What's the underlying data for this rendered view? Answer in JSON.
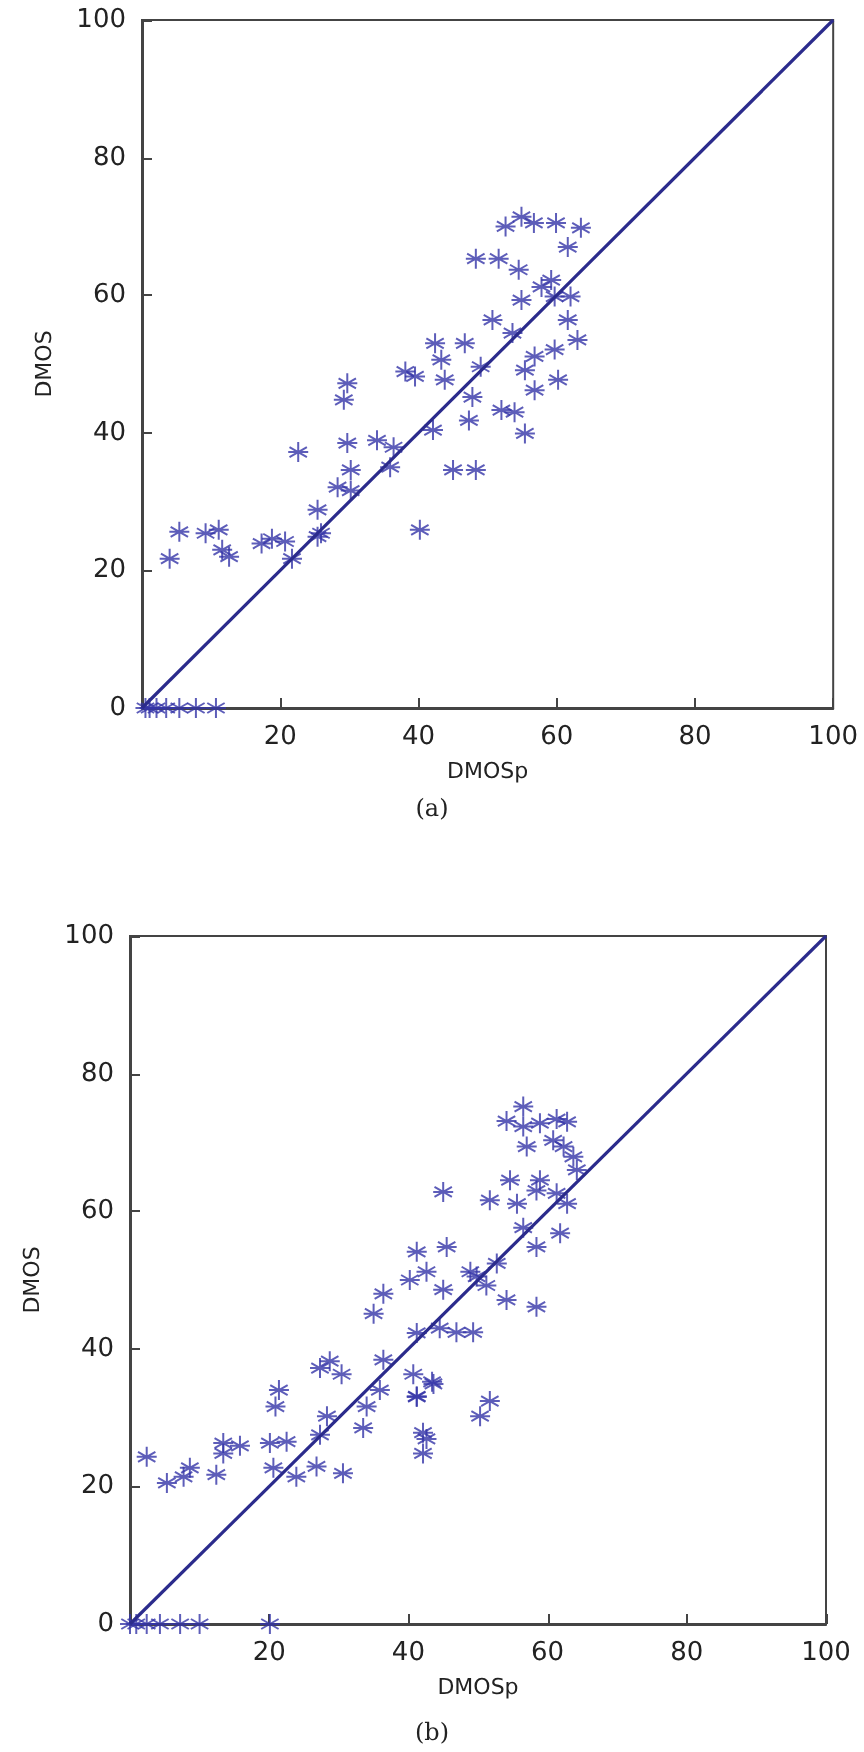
{
  "chart_data": [
    {
      "type": "scatter",
      "xlabel": "DMOSp",
      "ylabel": "DMOS",
      "annotations": [
        "(a)"
      ],
      "xlim": [
        0,
        100
      ],
      "ylim": [
        0,
        100
      ],
      "xticks": [
        {
          "value": 0,
          "label": null
        },
        20,
        40,
        60,
        80,
        100
      ],
      "yticks": [
        0,
        20,
        40,
        60,
        80,
        100
      ],
      "marker": "cross",
      "series": [
        {
          "color": "#3535a8",
          "x": [
            54.9,
            56.7,
            52.6,
            59.9,
            63.5,
            61.6,
            48.3,
            51.6,
            54.5,
            57.8,
            59.2,
            59.7,
            62,
            54.9,
            50.7,
            61.6,
            53.6,
            63,
            59.7,
            56.8,
            42.4,
            46.7,
            43.3,
            49,
            38.1,
            39.5,
            43.8,
            55.4,
            60.2,
            56.8,
            47.8,
            42.1,
            47.3,
            52,
            53.9,
            55.4,
            29.7,
            29.2,
            29.7,
            22.6,
            34,
            36.4,
            35.9,
            30.2,
            28.3,
            30.2,
            25.4,
            25.9,
            40.2,
            45,
            48.3,
            5.4,
            9.2,
            11.1,
            11.6,
            12.6,
            4,
            17.3,
            18.8,
            20.7,
            25.4,
            21.7,
            0.5,
            1.1,
            2.1,
            3.5,
            5.4,
            7.8,
            10.7
          ],
          "values": [
            71.4,
            70.5,
            70,
            70.5,
            69.8,
            67,
            65.3,
            65.3,
            63.7,
            61.2,
            62.2,
            59.8,
            59.8,
            59.3,
            56.4,
            56.4,
            54.5,
            53.5,
            52.1,
            51.1,
            53,
            53,
            50.6,
            49.6,
            48.9,
            48.2,
            47.7,
            49.1,
            47.7,
            46.2,
            45.2,
            40.4,
            41.8,
            43.3,
            43,
            39.9,
            47.2,
            44.8,
            38.5,
            37.2,
            38.9,
            37.9,
            35,
            34.6,
            32.1,
            31.6,
            28.8,
            25.4,
            25.9,
            34.6,
            34.6,
            25.6,
            25.4,
            25.9,
            23,
            22,
            21.7,
            23.9,
            24.6,
            24.2,
            24.9,
            21.7,
            0,
            0,
            0,
            0,
            0,
            0,
            0
          ]
        },
        {
          "type": "line",
          "color": "#2b2b8c",
          "x": [
            0,
            100
          ],
          "values": [
            0,
            100
          ],
          "marker": "none",
          "line_style": "solid"
        }
      ]
    },
    {
      "type": "scatter",
      "xlabel": "DMOSp",
      "ylabel": "DMOS",
      "annotations": [
        "(b)"
      ],
      "xlim": [
        0,
        100
      ],
      "ylim": [
        0,
        100
      ],
      "xticks": [
        {
          "value": 0,
          "label": null
        },
        20,
        40,
        60,
        80,
        100
      ],
      "yticks": [
        0,
        20,
        40,
        60,
        80,
        100
      ],
      "marker": "cross",
      "series": [
        {
          "color": "#3535a8",
          "x": [
            56.5,
            54.1,
            56.5,
            58.9,
            61.3,
            62.8,
            57,
            60.8,
            62.3,
            63.7,
            64.2,
            54.6,
            58.9,
            58.4,
            61.3,
            45,
            51.7,
            55.6,
            62.8,
            56.5,
            61.8,
            58.4,
            41.2,
            45.5,
            42.6,
            40.2,
            48.9,
            52.7,
            45,
            49.8,
            51.2,
            54.1,
            58.4,
            36.4,
            35,
            41.2,
            44.5,
            46.9,
            49.3,
            36.4,
            27.3,
            28.7,
            30.4,
            40.7,
            43.4,
            35.9,
            41.2,
            21.4,
            20.9,
            34,
            28.3,
            51.7,
            50.3,
            33.5,
            42.1,
            2.4,
            5.3,
            7.7,
            8.6,
            12.4,
            13.4,
            13.4,
            15.8,
            20.1,
            22.5,
            20.6,
            23.9,
            26.8,
            30.6,
            27.3,
            42.1,
            42.6,
            41.2,
            43.6,
            0,
            0.9,
            2.4,
            4.3,
            7.2,
            10,
            20.1
          ],
          "values": [
            75.2,
            73.1,
            72.3,
            72.8,
            73.4,
            73,
            69.4,
            70.3,
            69.4,
            67.9,
            66,
            64.5,
            64.5,
            63,
            62.6,
            62.8,
            61.6,
            61.1,
            61.1,
            57.6,
            56.8,
            54.8,
            54.1,
            54.8,
            51.2,
            50,
            51.2,
            52.4,
            48.6,
            50.5,
            49.2,
            47.1,
            46.1,
            48,
            45.1,
            42.3,
            43,
            42.4,
            42.4,
            38.4,
            37.2,
            38.2,
            36.3,
            36.3,
            35.2,
            34,
            33.1,
            34,
            31.6,
            31.6,
            30.2,
            32.4,
            30.2,
            28.5,
            27.8,
            24.3,
            20.5,
            21.4,
            22.7,
            21.7,
            26.3,
            24.8,
            25.9,
            26.3,
            26.5,
            22.7,
            21.4,
            22.9,
            21.9,
            27.5,
            24.8,
            26.9,
            33,
            34.9,
            0,
            0,
            0,
            0,
            0,
            0,
            0
          ]
        },
        {
          "type": "line",
          "color": "#2b2b8c",
          "x": [
            0,
            100
          ],
          "values": [
            0,
            100
          ],
          "marker": "none",
          "line_style": "solid"
        }
      ]
    }
  ]
}
